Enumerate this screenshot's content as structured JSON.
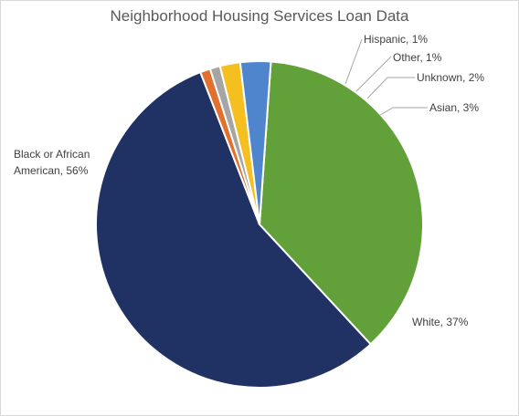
{
  "chart_data": {
    "type": "pie",
    "title": "Neighborhood Housing Services Loan Data",
    "start_angle_deg": 4,
    "slices": [
      {
        "name": "White",
        "value": 37,
        "label": "White, 37%",
        "color": "#62A03A"
      },
      {
        "name": "Black or African American",
        "value": 56,
        "label_lines": [
          "Black or African",
          "American, 56%"
        ],
        "color": "#1F3263"
      },
      {
        "name": "Hispanic",
        "value": 1,
        "label": "Hispanic, 1%",
        "color": "#E2702E"
      },
      {
        "name": "Other",
        "value": 1,
        "label": "Other, 1%",
        "color": "#A5A5A5"
      },
      {
        "name": "Unknown",
        "value": 2,
        "label": "Unknown, 2%",
        "color": "#F5BF1F"
      },
      {
        "name": "Asian",
        "value": 3,
        "label": "Asian, 3%",
        "color": "#4E85CC"
      }
    ]
  }
}
